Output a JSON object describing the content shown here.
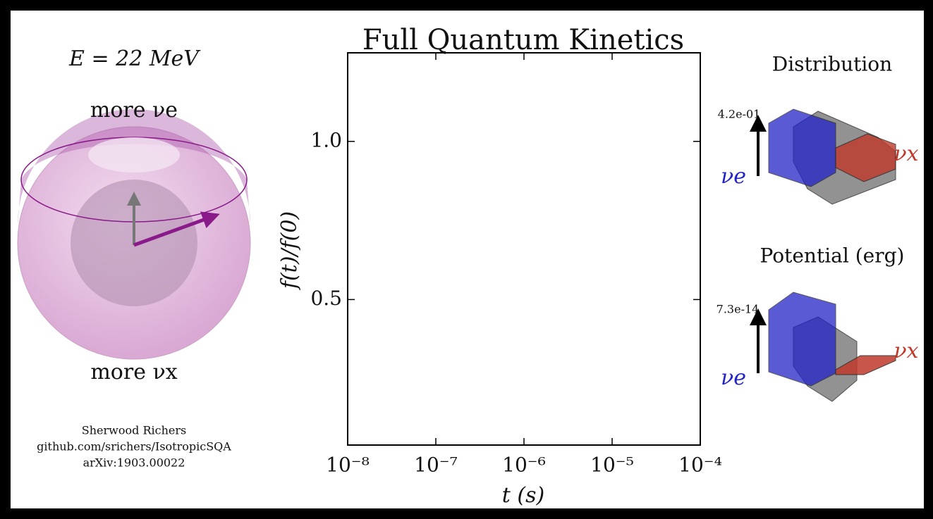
{
  "chart_data": {
    "type": "line",
    "title": "Full Quantum Kinetics",
    "xlabel": "t (s)",
    "ylabel": "f(t)/f(0)",
    "xscale": "log",
    "xlim": [
      1e-08,
      0.0001
    ],
    "xticks": [
      {
        "value": 1e-08,
        "label": "10⁻⁸"
      },
      {
        "value": 1e-07,
        "label": "10⁻⁷"
      },
      {
        "value": 1e-06,
        "label": "10⁻⁶"
      },
      {
        "value": 1e-05,
        "label": "10⁻⁵"
      },
      {
        "value": 0.0001,
        "label": "10⁻⁴"
      }
    ],
    "ylim": [
      0.04,
      1.28
    ],
    "yticks": [
      0.5,
      {
        "value": 1,
        "label": "1.0"
      }
    ],
    "series": []
  },
  "bloch": {
    "energy_label": "E = 22 MeV",
    "top_label": "more νe",
    "bottom_label": "more νx"
  },
  "credits": [
    "Sherwood Richers",
    "github.com/srichers/IsotropicSQA",
    "arXiv:1903.00022"
  ],
  "distribution": {
    "title": "Distribution",
    "max_label": "4.2e-01",
    "nu_e_label": "νe",
    "nu_x_label": "νx"
  },
  "potential": {
    "title": "Potential (erg)",
    "max_label": "7.3e-14",
    "nu_e_label": "νe",
    "nu_x_label": "νx"
  }
}
